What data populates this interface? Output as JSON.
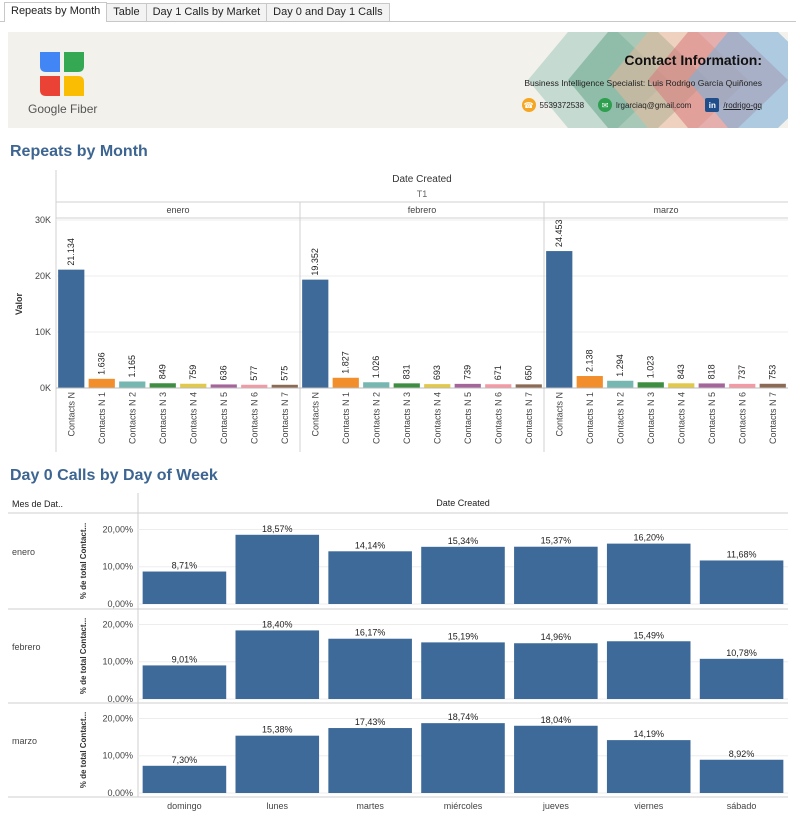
{
  "tabs": [
    {
      "label": "Repeats by Month",
      "active": true
    },
    {
      "label": "Table",
      "active": false
    },
    {
      "label": "Day 1 Calls by Market",
      "active": false
    },
    {
      "label": "Day 0 and Day 1 Calls",
      "active": false
    }
  ],
  "banner": {
    "logo_text": "Google Fiber",
    "contact_title": "Contact Information:",
    "contact_subtitle": "Business Intelligence Specialist: Luis Rodrigo García Quiñones",
    "phone": "5539372538",
    "email": "lrgarciaq@gmail.com",
    "linkedin": "/rodrigo-gq",
    "colors": {
      "phone": "#f5a623",
      "email": "#2e9e4f",
      "linkedin": "#1f4e8a"
    }
  },
  "section1_title": "Repeats by Month",
  "section2_title": "Day 0 Calls by Day of Week",
  "chart_data": [
    {
      "type": "bar",
      "title": "",
      "header": "Date Created",
      "subheader": "T1",
      "ylabel": "Valor",
      "ylim": [
        0,
        30000
      ],
      "yticks": [
        "0K",
        "10K",
        "20K",
        "30K"
      ],
      "panels": [
        "enero",
        "febrero",
        "marzo"
      ],
      "categories": [
        "Contacts N",
        "Contacts N 1",
        "Contacts N 2",
        "Contacts N 3",
        "Contacts N 4",
        "Contacts N 5",
        "Contacts N 6",
        "Contacts N 7"
      ],
      "colors": [
        "#3e6a9a",
        "#f28e2b",
        "#76b7b2",
        "#3e8e41",
        "#e2c94a",
        "#a6659a",
        "#f49aa4",
        "#8c6a53"
      ],
      "series": [
        {
          "values": [
            21134,
            1636,
            1165,
            849,
            759,
            636,
            577,
            575
          ],
          "labels": [
            "21.134",
            "1.636",
            "1.165",
            "849",
            "759",
            "636",
            "577",
            "575"
          ]
        },
        {
          "values": [
            19352,
            1827,
            1026,
            831,
            693,
            739,
            671,
            650
          ],
          "labels": [
            "19.352",
            "1.827",
            "1.026",
            "831",
            "693",
            "739",
            "671",
            "650"
          ]
        },
        {
          "values": [
            24453,
            2138,
            1294,
            1023,
            843,
            818,
            737,
            753
          ],
          "labels": [
            "24.453",
            "2.138",
            "1.294",
            "1.023",
            "843",
            "818",
            "737",
            "753"
          ]
        }
      ]
    },
    {
      "type": "bar",
      "title": "",
      "row_header": "Mes de Dat..",
      "col_header": "Date Created",
      "ylabel": "% de total Contact...",
      "ylim": [
        0,
        0.22
      ],
      "yticks": [
        "0,00%",
        "10,00%",
        "20,00%"
      ],
      "color": "#3e6a9a",
      "categories": [
        "domingo",
        "lunes",
        "martes",
        "miércoles",
        "jueves",
        "viernes",
        "sábado"
      ],
      "series": [
        {
          "name": "enero",
          "values": [
            0.0871,
            0.1857,
            0.1414,
            0.1534,
            0.1537,
            0.162,
            0.1168
          ],
          "labels": [
            "8,71%",
            "18,57%",
            "14,14%",
            "15,34%",
            "15,37%",
            "16,20%",
            "11,68%"
          ]
        },
        {
          "name": "febrero",
          "values": [
            0.0901,
            0.184,
            0.1617,
            0.1519,
            0.1496,
            0.1549,
            0.1078
          ],
          "labels": [
            "9,01%",
            "18,40%",
            "16,17%",
            "15,19%",
            "14,96%",
            "15,49%",
            "10,78%"
          ]
        },
        {
          "name": "marzo",
          "values": [
            0.073,
            0.1538,
            0.1743,
            0.1874,
            0.1804,
            0.1419,
            0.0892
          ],
          "labels": [
            "7,30%",
            "15,38%",
            "17,43%",
            "18,74%",
            "18,04%",
            "14,19%",
            "8,92%"
          ]
        }
      ]
    }
  ]
}
